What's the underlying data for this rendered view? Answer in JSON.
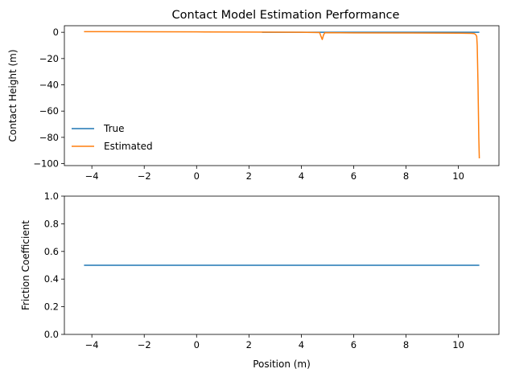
{
  "chart_data": [
    {
      "type": "line",
      "title": "Contact Model Estimation Performance",
      "xlabel": "",
      "ylabel": "Contact Height (m)",
      "xlim": [
        -5.05,
        11.55
      ],
      "ylim": [
        -101.5,
        5.0
      ],
      "xticks": [
        "−4",
        "−2",
        "0",
        "2",
        "4",
        "6",
        "8",
        "10"
      ],
      "xtick_values": [
        -4,
        -2,
        0,
        2,
        4,
        6,
        8,
        10
      ],
      "yticks": [
        "−100",
        "−80",
        "−60",
        "−40",
        "−20",
        "0"
      ],
      "ytick_values": [
        -100,
        -80,
        -60,
        -40,
        -20,
        0
      ],
      "grid": false,
      "legend": {
        "position": "lower-left",
        "entries": [
          "True",
          "Estimated"
        ]
      },
      "series": [
        {
          "name": "True",
          "color": "#1f77b4",
          "x": [
            2.5,
            4.0,
            6.0,
            8.0,
            10.0,
            10.8
          ],
          "y": [
            0.0,
            0.0,
            0.0,
            0.0,
            0.0,
            0.0
          ]
        },
        {
          "name": "Estimated",
          "color": "#ff7f0e",
          "x": [
            -4.3,
            -2,
            0,
            2,
            4,
            4.7,
            4.75,
            4.8,
            4.85,
            4.9,
            6,
            8,
            10,
            10.5,
            10.6,
            10.65,
            10.7,
            10.72,
            10.75,
            10.78,
            10.8
          ],
          "y": [
            0.5,
            0.4,
            0.3,
            0.2,
            0.0,
            -0.2,
            -3.0,
            -5.5,
            -2.0,
            -0.3,
            -0.4,
            -0.5,
            -0.7,
            -0.8,
            -1.0,
            -1.5,
            -3.0,
            -10.0,
            -40.0,
            -80.0,
            -96.0
          ]
        }
      ]
    },
    {
      "type": "line",
      "title": "",
      "xlabel": "Position (m)",
      "ylabel": "Friction Coefficient",
      "xlim": [
        -5.05,
        11.55
      ],
      "ylim": [
        0.0,
        1.0
      ],
      "xticks": [
        "−4",
        "−2",
        "0",
        "2",
        "4",
        "6",
        "8",
        "10"
      ],
      "xtick_values": [
        -4,
        -2,
        0,
        2,
        4,
        6,
        8,
        10
      ],
      "yticks": [
        "0.0",
        "0.2",
        "0.4",
        "0.6",
        "0.8",
        "1.0"
      ],
      "ytick_values": [
        0.0,
        0.2,
        0.4,
        0.6,
        0.8,
        1.0
      ],
      "grid": false,
      "series": [
        {
          "color": "#1f77b4",
          "x": [
            -4.3,
            10.8
          ],
          "y": [
            0.5,
            0.5
          ]
        }
      ]
    }
  ]
}
